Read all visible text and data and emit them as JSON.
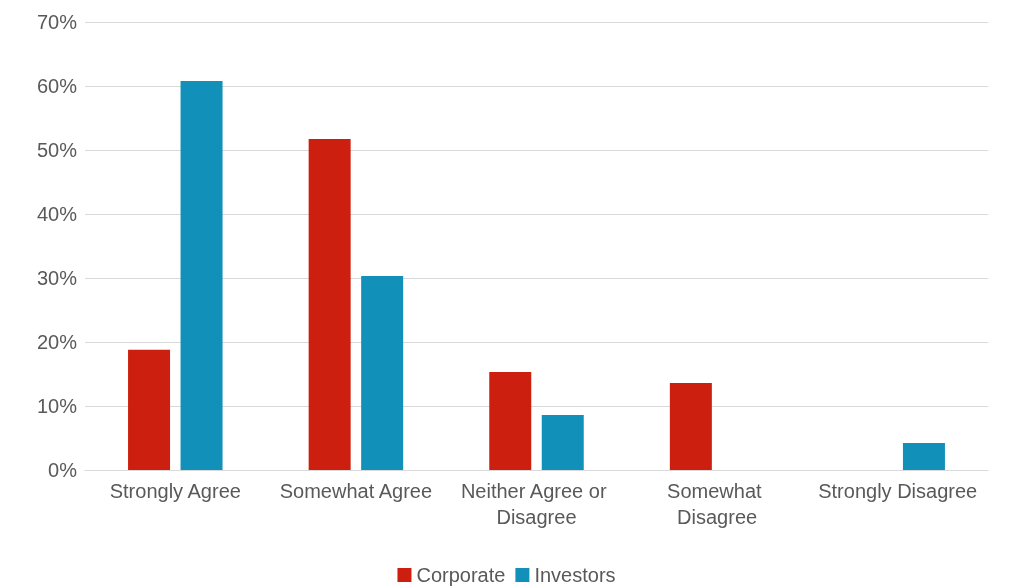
{
  "chart_data": {
    "type": "bar",
    "categories": [
      "Strongly Agree",
      "Somewhat Agree",
      "Neither Agree or Disagree",
      "Somewhat Disagree",
      "Strongly Disagree"
    ],
    "series": [
      {
        "name": "Corporate",
        "color": "#cc1f10",
        "values": [
          18.8,
          51.7,
          15.3,
          13.6,
          0
        ]
      },
      {
        "name": "Investors",
        "color": "#1190b9",
        "values": [
          60.8,
          30.3,
          8.6,
          0,
          4.2
        ]
      }
    ],
    "ylim": [
      0,
      70
    ],
    "yticks": [
      {
        "value": 0,
        "label": "0%"
      },
      {
        "value": 10,
        "label": "10%"
      },
      {
        "value": 20,
        "label": "20%"
      },
      {
        "value": 30,
        "label": "30%"
      },
      {
        "value": 40,
        "label": "40%"
      },
      {
        "value": 50,
        "label": "50%"
      },
      {
        "value": 60,
        "label": "60%"
      },
      {
        "value": 70,
        "label": "70%"
      }
    ],
    "grid": "y",
    "legend": "bottom"
  }
}
